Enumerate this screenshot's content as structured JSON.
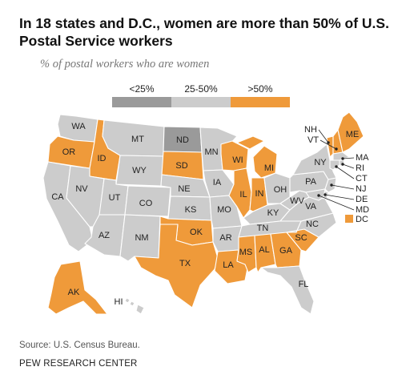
{
  "header": {
    "title": "In 18 states and D.C., women are more than 50% of U.S. Postal Service workers",
    "subtitle": "% of postal workers who are women"
  },
  "legend": {
    "items": [
      {
        "label": "<25%",
        "color": "#9a9a9a"
      },
      {
        "label": "25-50%",
        "color": "#cccccc"
      },
      {
        "label": ">50%",
        "color": "#ef9a3a"
      }
    ]
  },
  "map": {
    "category_colors": {
      "low": "#9a9a9a",
      "mid": "#cccccc",
      "high": "#ef9a3a"
    },
    "states": {
      "WA": "mid",
      "OR": "high",
      "CA": "mid",
      "ID": "high",
      "NV": "mid",
      "MT": "mid",
      "WY": "mid",
      "UT": "mid",
      "AZ": "mid",
      "CO": "mid",
      "NM": "mid",
      "ND": "low",
      "SD": "high",
      "NE": "mid",
      "KS": "mid",
      "OK": "high",
      "TX": "high",
      "MN": "mid",
      "IA": "mid",
      "MO": "mid",
      "AR": "mid",
      "LA": "high",
      "WI": "high",
      "IL": "high",
      "MI": "high",
      "IN": "high",
      "OH": "mid",
      "KY": "mid",
      "TN": "mid",
      "MS": "high",
      "AL": "high",
      "GA": "high",
      "FL": "mid",
      "SC": "high",
      "NC": "mid",
      "VA": "mid",
      "WV": "mid",
      "PA": "mid",
      "NY": "mid",
      "VT": "high",
      "NH": "high",
      "ME": "high",
      "MA": "mid",
      "RI": "mid",
      "CT": "mid",
      "NJ": "mid",
      "DE": "mid",
      "MD": "mid",
      "AK": "high",
      "HI": "mid",
      "DC": "high"
    },
    "labels": {
      "WA": "WA",
      "OR": "OR",
      "CA": "CA",
      "ID": "ID",
      "NV": "NV",
      "MT": "MT",
      "WY": "WY",
      "UT": "UT",
      "AZ": "AZ",
      "CO": "CO",
      "NM": "NM",
      "ND": "ND",
      "SD": "SD",
      "NE": "NE",
      "KS": "KS",
      "OK": "OK",
      "TX": "TX",
      "MN": "MN",
      "IA": "IA",
      "MO": "MO",
      "AR": "AR",
      "LA": "LA",
      "WI": "WI",
      "IL": "IL",
      "MI": "MI",
      "IN": "IN",
      "OH": "OH",
      "KY": "KY",
      "TN": "TN",
      "MS": "MS",
      "AL": "AL",
      "GA": "GA",
      "FL": "FL",
      "SC": "SC",
      "NC": "NC",
      "VA": "VA",
      "WV": "WV",
      "PA": "PA",
      "NY": "NY",
      "VT": "VT",
      "NH": "NH",
      "ME": "ME",
      "MA": "MA",
      "RI": "RI",
      "CT": "CT",
      "NJ": "NJ",
      "DE": "DE",
      "MD": "MD",
      "AK": "AK",
      "HI": "HI",
      "DC": "DC"
    }
  },
  "footer": {
    "source": "Source: U.S. Census Bureau.",
    "credit": "PEW RESEARCH CENTER"
  }
}
